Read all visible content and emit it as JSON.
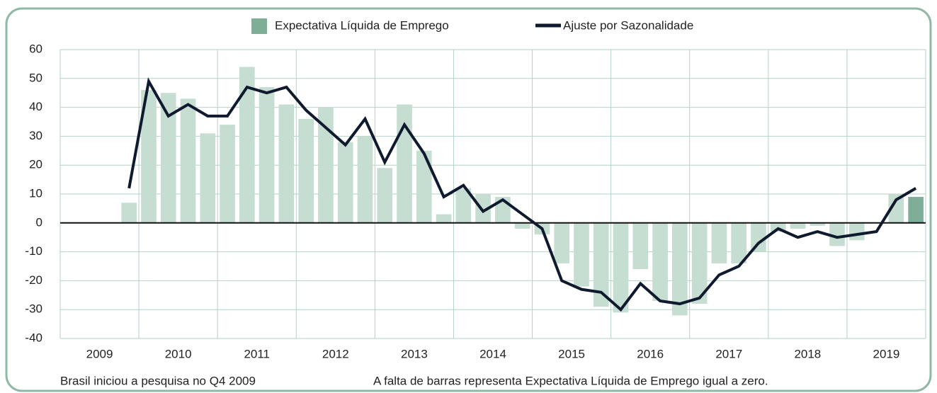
{
  "chart_data": {
    "type": "bar_line",
    "year_labels": [
      "2009",
      "2010",
      "2011",
      "2012",
      "2013",
      "2014",
      "2015",
      "2016",
      "2017",
      "2018",
      "2019"
    ],
    "quarters_per_year": 4,
    "series": [
      {
        "name": "Expectativa Líquida de Emprego",
        "type": "bar",
        "color": "#c6ddd2",
        "highlight_color": "#7fae98",
        "values": [
          null,
          null,
          null,
          7,
          46,
          45,
          43,
          31,
          34,
          54,
          47,
          41,
          36,
          40,
          28,
          30,
          19,
          41,
          25,
          3,
          12,
          10,
          9,
          -2,
          -4,
          -14,
          -22,
          -29,
          -31,
          -16,
          -27,
          -32,
          -28,
          -14,
          -14,
          -10,
          -3,
          -2,
          -1,
          -8,
          -6,
          0,
          10,
          9
        ]
      },
      {
        "name": "Ajuste por Sazonalidade",
        "type": "line",
        "color": "#0f1a2e",
        "values": [
          null,
          null,
          null,
          12,
          49,
          37,
          41,
          37,
          37,
          47,
          45,
          47,
          39,
          33,
          27,
          36,
          21,
          34,
          24,
          9,
          13,
          4,
          8,
          3,
          -2,
          -20,
          -23,
          -24,
          -30,
          -21,
          -27,
          -28,
          -26,
          -18,
          -15,
          -7,
          -2,
          -5,
          -3,
          -5,
          -4,
          -3,
          8,
          12
        ]
      }
    ],
    "ylim": [
      -40,
      60
    ],
    "yticks": [
      -40,
      -30,
      -20,
      -10,
      0,
      10,
      20,
      30,
      40,
      50,
      60
    ],
    "grid": true,
    "legend": "top",
    "notes": [
      "Brasil iniciou a pesquisa no Q4 2009",
      "A falta de barras representa Expectativa Líquida de Emprego igual a zero."
    ]
  }
}
